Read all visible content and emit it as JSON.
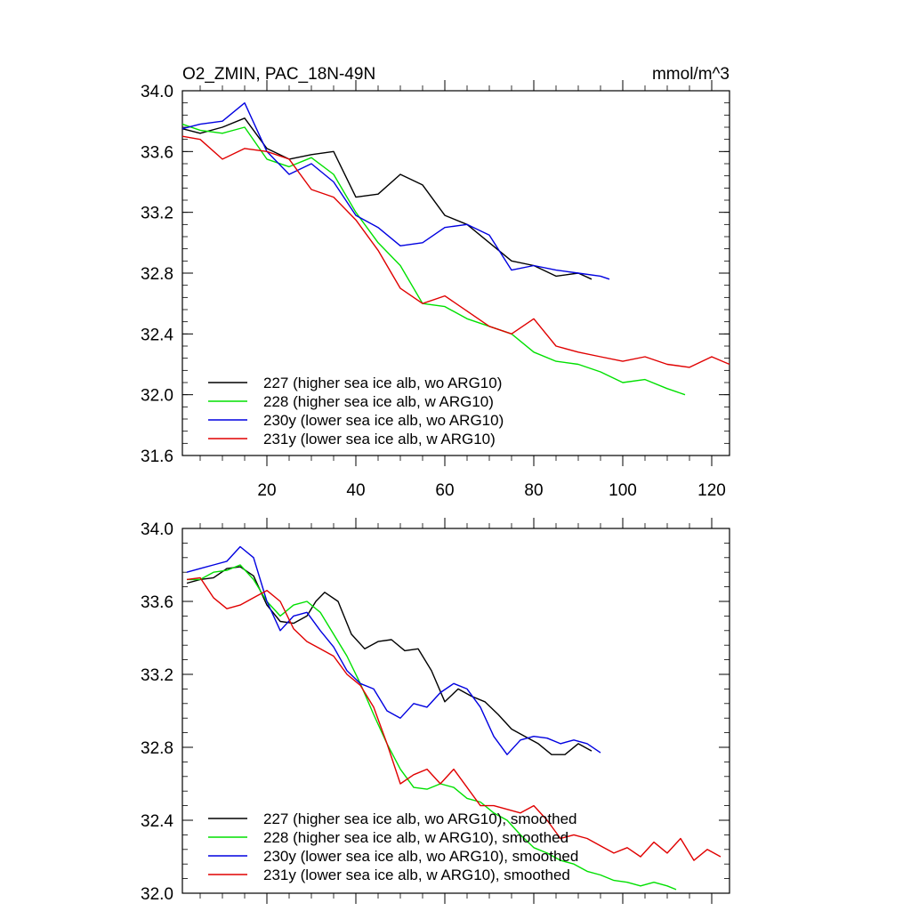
{
  "chart_data": [
    {
      "type": "line",
      "title": "O2_ZMIN, PAC_18N-49N",
      "units": "mmol/m^3",
      "xlim": [
        1,
        124
      ],
      "ylim": [
        31.6,
        34.0
      ],
      "xticks": [
        20,
        40,
        60,
        80,
        100,
        120
      ],
      "yticks": [
        31.6,
        32.0,
        32.4,
        32.8,
        33.2,
        33.6,
        34.0
      ],
      "ytick_labels": [
        "31.6",
        "32.0",
        "32.4",
        "32.8",
        "33.2",
        "33.6",
        "34.0"
      ],
      "xtick_labels": [
        "20",
        "40",
        "60",
        "80",
        "100",
        "120"
      ],
      "legend_position": "bottom-left",
      "series": [
        {
          "name": "227 (higher sea ice alb, wo ARG10)",
          "color": "#000000",
          "x": [
            1,
            5,
            10,
            15,
            20,
            25,
            30,
            35,
            40,
            45,
            50,
            55,
            60,
            65,
            70,
            75,
            80,
            85,
            90,
            93
          ],
          "values": [
            33.75,
            33.72,
            33.76,
            33.82,
            33.62,
            33.55,
            33.58,
            33.6,
            33.3,
            33.32,
            33.45,
            33.38,
            33.18,
            33.12,
            33.0,
            32.88,
            32.85,
            32.78,
            32.8,
            32.76
          ]
        },
        {
          "name": "228 (higher sea ice alb, w ARG10)",
          "color": "#00e000",
          "x": [
            1,
            5,
            10,
            15,
            20,
            25,
            30,
            35,
            40,
            45,
            50,
            55,
            60,
            65,
            70,
            75,
            80,
            85,
            90,
            95,
            100,
            105,
            110,
            114
          ],
          "values": [
            33.78,
            33.74,
            33.72,
            33.76,
            33.55,
            33.5,
            33.56,
            33.45,
            33.2,
            33.0,
            32.85,
            32.6,
            32.58,
            32.5,
            32.45,
            32.4,
            32.28,
            32.22,
            32.2,
            32.15,
            32.08,
            32.1,
            32.04,
            32.0
          ]
        },
        {
          "name": "230y (lower sea ice alb, wo ARG10)",
          "color": "#0000e0",
          "x": [
            1,
            5,
            10,
            15,
            20,
            25,
            30,
            35,
            40,
            45,
            50,
            55,
            60,
            65,
            70,
            75,
            80,
            85,
            90,
            95,
            97
          ],
          "values": [
            33.75,
            33.78,
            33.8,
            33.92,
            33.6,
            33.45,
            33.52,
            33.4,
            33.18,
            33.1,
            32.98,
            33.0,
            33.1,
            33.12,
            33.05,
            32.82,
            32.85,
            32.82,
            32.8,
            32.78,
            32.76
          ]
        },
        {
          "name": "231y (lower sea ice alb, w ARG10)",
          "color": "#e00000",
          "x": [
            1,
            5,
            10,
            15,
            20,
            25,
            30,
            35,
            40,
            45,
            50,
            55,
            60,
            65,
            70,
            75,
            80,
            85,
            90,
            95,
            100,
            105,
            110,
            115,
            120,
            124
          ],
          "values": [
            33.7,
            33.68,
            33.55,
            33.62,
            33.6,
            33.55,
            33.35,
            33.3,
            33.15,
            32.95,
            32.7,
            32.6,
            32.65,
            32.55,
            32.45,
            32.4,
            32.5,
            32.32,
            32.28,
            32.25,
            32.22,
            32.25,
            32.2,
            32.18,
            32.25,
            32.2
          ]
        }
      ],
      "legend": [
        "227 (higher sea ice alb, wo ARG10)",
        "228 (higher sea ice alb, w ARG10)",
        "230y (lower sea ice alb, wo ARG10)",
        "231y (lower sea ice alb, w ARG10)"
      ]
    },
    {
      "type": "line",
      "title": "",
      "xlim": [
        1,
        124
      ],
      "ylim": [
        32.0,
        34.0
      ],
      "yticks": [
        32.0,
        32.4,
        32.8,
        33.2,
        33.6,
        34.0
      ],
      "ytick_labels": [
        "32.0",
        "32.4",
        "32.8",
        "33.2",
        "33.6",
        "34.0"
      ],
      "legend_position": "bottom-left",
      "series": [
        {
          "name": "227 (higher sea ice alb, wo ARG10), smoothed",
          "color": "#000000",
          "x": [
            2,
            5,
            8,
            11,
            14,
            17,
            20,
            23,
            26,
            29,
            31,
            33,
            36,
            39,
            42,
            45,
            48,
            51,
            54,
            57,
            60,
            63,
            66,
            69,
            72,
            75,
            78,
            81,
            84,
            87,
            90,
            93
          ],
          "values": [
            33.7,
            33.72,
            33.73,
            33.78,
            33.79,
            33.74,
            33.58,
            33.49,
            33.48,
            33.52,
            33.6,
            33.65,
            33.6,
            33.42,
            33.34,
            33.38,
            33.39,
            33.33,
            33.34,
            33.22,
            33.05,
            33.12,
            33.08,
            33.05,
            32.98,
            32.9,
            32.86,
            32.82,
            32.76,
            32.76,
            32.82,
            32.78
          ]
        },
        {
          "name": "228 (higher sea ice alb, w ARG10), smoothed",
          "color": "#00e000",
          "x": [
            2,
            5,
            8,
            11,
            14,
            17,
            20,
            23,
            26,
            29,
            32,
            35,
            38,
            41,
            44,
            47,
            50,
            53,
            56,
            59,
            62,
            65,
            68,
            71,
            74,
            77,
            80,
            83,
            86,
            89,
            92,
            95,
            98,
            101,
            104,
            107,
            110,
            112
          ],
          "values": [
            33.72,
            33.72,
            33.76,
            33.77,
            33.8,
            33.72,
            33.6,
            33.52,
            33.58,
            33.6,
            33.54,
            33.42,
            33.3,
            33.15,
            32.98,
            32.82,
            32.68,
            32.58,
            32.57,
            32.6,
            32.58,
            32.52,
            32.5,
            32.44,
            32.4,
            32.32,
            32.25,
            32.22,
            32.18,
            32.16,
            32.12,
            32.1,
            32.07,
            32.06,
            32.04,
            32.06,
            32.04,
            32.02
          ]
        },
        {
          "name": "230y (lower sea ice alb, wo ARG10), smoothed",
          "color": "#0000e0",
          "x": [
            2,
            5,
            8,
            11,
            14,
            17,
            20,
            23,
            26,
            29,
            32,
            35,
            38,
            41,
            44,
            47,
            50,
            53,
            56,
            59,
            62,
            65,
            68,
            71,
            74,
            77,
            80,
            83,
            86,
            89,
            92,
            95
          ],
          "values": [
            33.76,
            33.78,
            33.8,
            33.82,
            33.9,
            33.84,
            33.6,
            33.44,
            33.52,
            33.54,
            33.44,
            33.35,
            33.22,
            33.15,
            33.12,
            33.0,
            32.96,
            33.04,
            33.02,
            33.1,
            33.15,
            33.12,
            33.02,
            32.86,
            32.76,
            32.84,
            32.86,
            32.85,
            32.82,
            32.84,
            32.82,
            32.77
          ]
        },
        {
          "name": "231y (lower sea ice alb, w ARG10), smoothed",
          "color": "#e00000",
          "x": [
            2,
            5,
            8,
            11,
            14,
            17,
            20,
            23,
            26,
            29,
            32,
            35,
            38,
            41,
            44,
            47,
            50,
            53,
            56,
            59,
            62,
            65,
            68,
            71,
            74,
            77,
            80,
            83,
            86,
            89,
            92,
            95,
            98,
            101,
            104,
            107,
            110,
            113,
            116,
            119,
            122
          ],
          "values": [
            33.72,
            33.73,
            33.62,
            33.56,
            33.58,
            33.62,
            33.66,
            33.6,
            33.45,
            33.38,
            33.34,
            33.3,
            33.2,
            33.14,
            33.02,
            32.82,
            32.6,
            32.65,
            32.68,
            32.6,
            32.68,
            32.58,
            32.48,
            32.48,
            32.46,
            32.44,
            32.48,
            32.4,
            32.3,
            32.32,
            32.3,
            32.26,
            32.22,
            32.25,
            32.2,
            32.28,
            32.22,
            32.3,
            32.18,
            32.24,
            32.2
          ]
        }
      ],
      "legend": [
        "227 (higher sea ice alb, wo ARG10), smoothed",
        "228 (higher sea ice alb, w ARG10), smoothed",
        "230y (lower sea ice alb, wo ARG10), smoothed",
        "231y (lower sea ice alb, w ARG10), smoothed"
      ]
    }
  ]
}
